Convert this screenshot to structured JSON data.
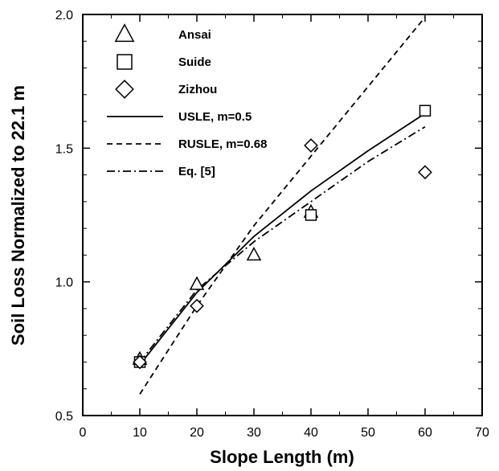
{
  "chart_data": {
    "type": "scatter",
    "xlabel": "Slope Length  (m)",
    "ylabel": "Soil Loss Normalized to 22.1 m",
    "xlim": [
      0,
      70
    ],
    "ylim": [
      0.5,
      2.0
    ],
    "xticks": [
      0,
      10,
      20,
      30,
      40,
      50,
      60,
      70
    ],
    "yticks": [
      0.5,
      1.0,
      1.5,
      2.0
    ],
    "xtick_labels": [
      "0",
      "10",
      "20",
      "30",
      "40",
      "50",
      "60",
      "70"
    ],
    "ytick_labels": [
      "0.5",
      "1.0",
      "1.5",
      "2.0"
    ],
    "grid": false,
    "legend_position": "top-left",
    "scatter_series": [
      {
        "name": "Ansai",
        "marker": "triangle",
        "x": [
          10,
          20,
          30,
          40
        ],
        "y": [
          0.71,
          0.99,
          1.1,
          1.26
        ]
      },
      {
        "name": "Suide",
        "marker": "square",
        "x": [
          10,
          40,
          60
        ],
        "y": [
          0.7,
          1.25,
          1.64
        ]
      },
      {
        "name": "Zizhou",
        "marker": "diamond",
        "x": [
          10,
          20,
          40,
          60
        ],
        "y": [
          0.7,
          0.91,
          1.51,
          1.41
        ]
      }
    ],
    "line_series": [
      {
        "name": "USLE, m=0.5",
        "dash": "solid",
        "x": [
          10,
          20,
          30,
          40,
          50,
          60
        ],
        "y": [
          0.69,
          0.96,
          1.17,
          1.34,
          1.49,
          1.63
        ]
      },
      {
        "name": "RUSLE, m=0.68",
        "dash": "dashed",
        "x": [
          10,
          20,
          30,
          40,
          50,
          60
        ],
        "y": [
          0.58,
          0.91,
          1.21,
          1.47,
          1.73,
          1.99
        ]
      },
      {
        "name": "Eq. [5]",
        "dash": "dashdot",
        "x": [
          10,
          20,
          30,
          40,
          50,
          60
        ],
        "y": [
          0.7,
          0.97,
          1.15,
          1.3,
          1.45,
          1.58
        ]
      }
    ],
    "legend": [
      {
        "label": "Ansai",
        "kind": "triangle"
      },
      {
        "label": "Suide",
        "kind": "square"
      },
      {
        "label": "Zizhou",
        "kind": "diamond"
      },
      {
        "label": "USLE, m=0.5",
        "kind": "solid"
      },
      {
        "label": "RUSLE, m=0.68",
        "kind": "dashed"
      },
      {
        "label": "Eq. [5]",
        "kind": "dashdot"
      }
    ]
  }
}
